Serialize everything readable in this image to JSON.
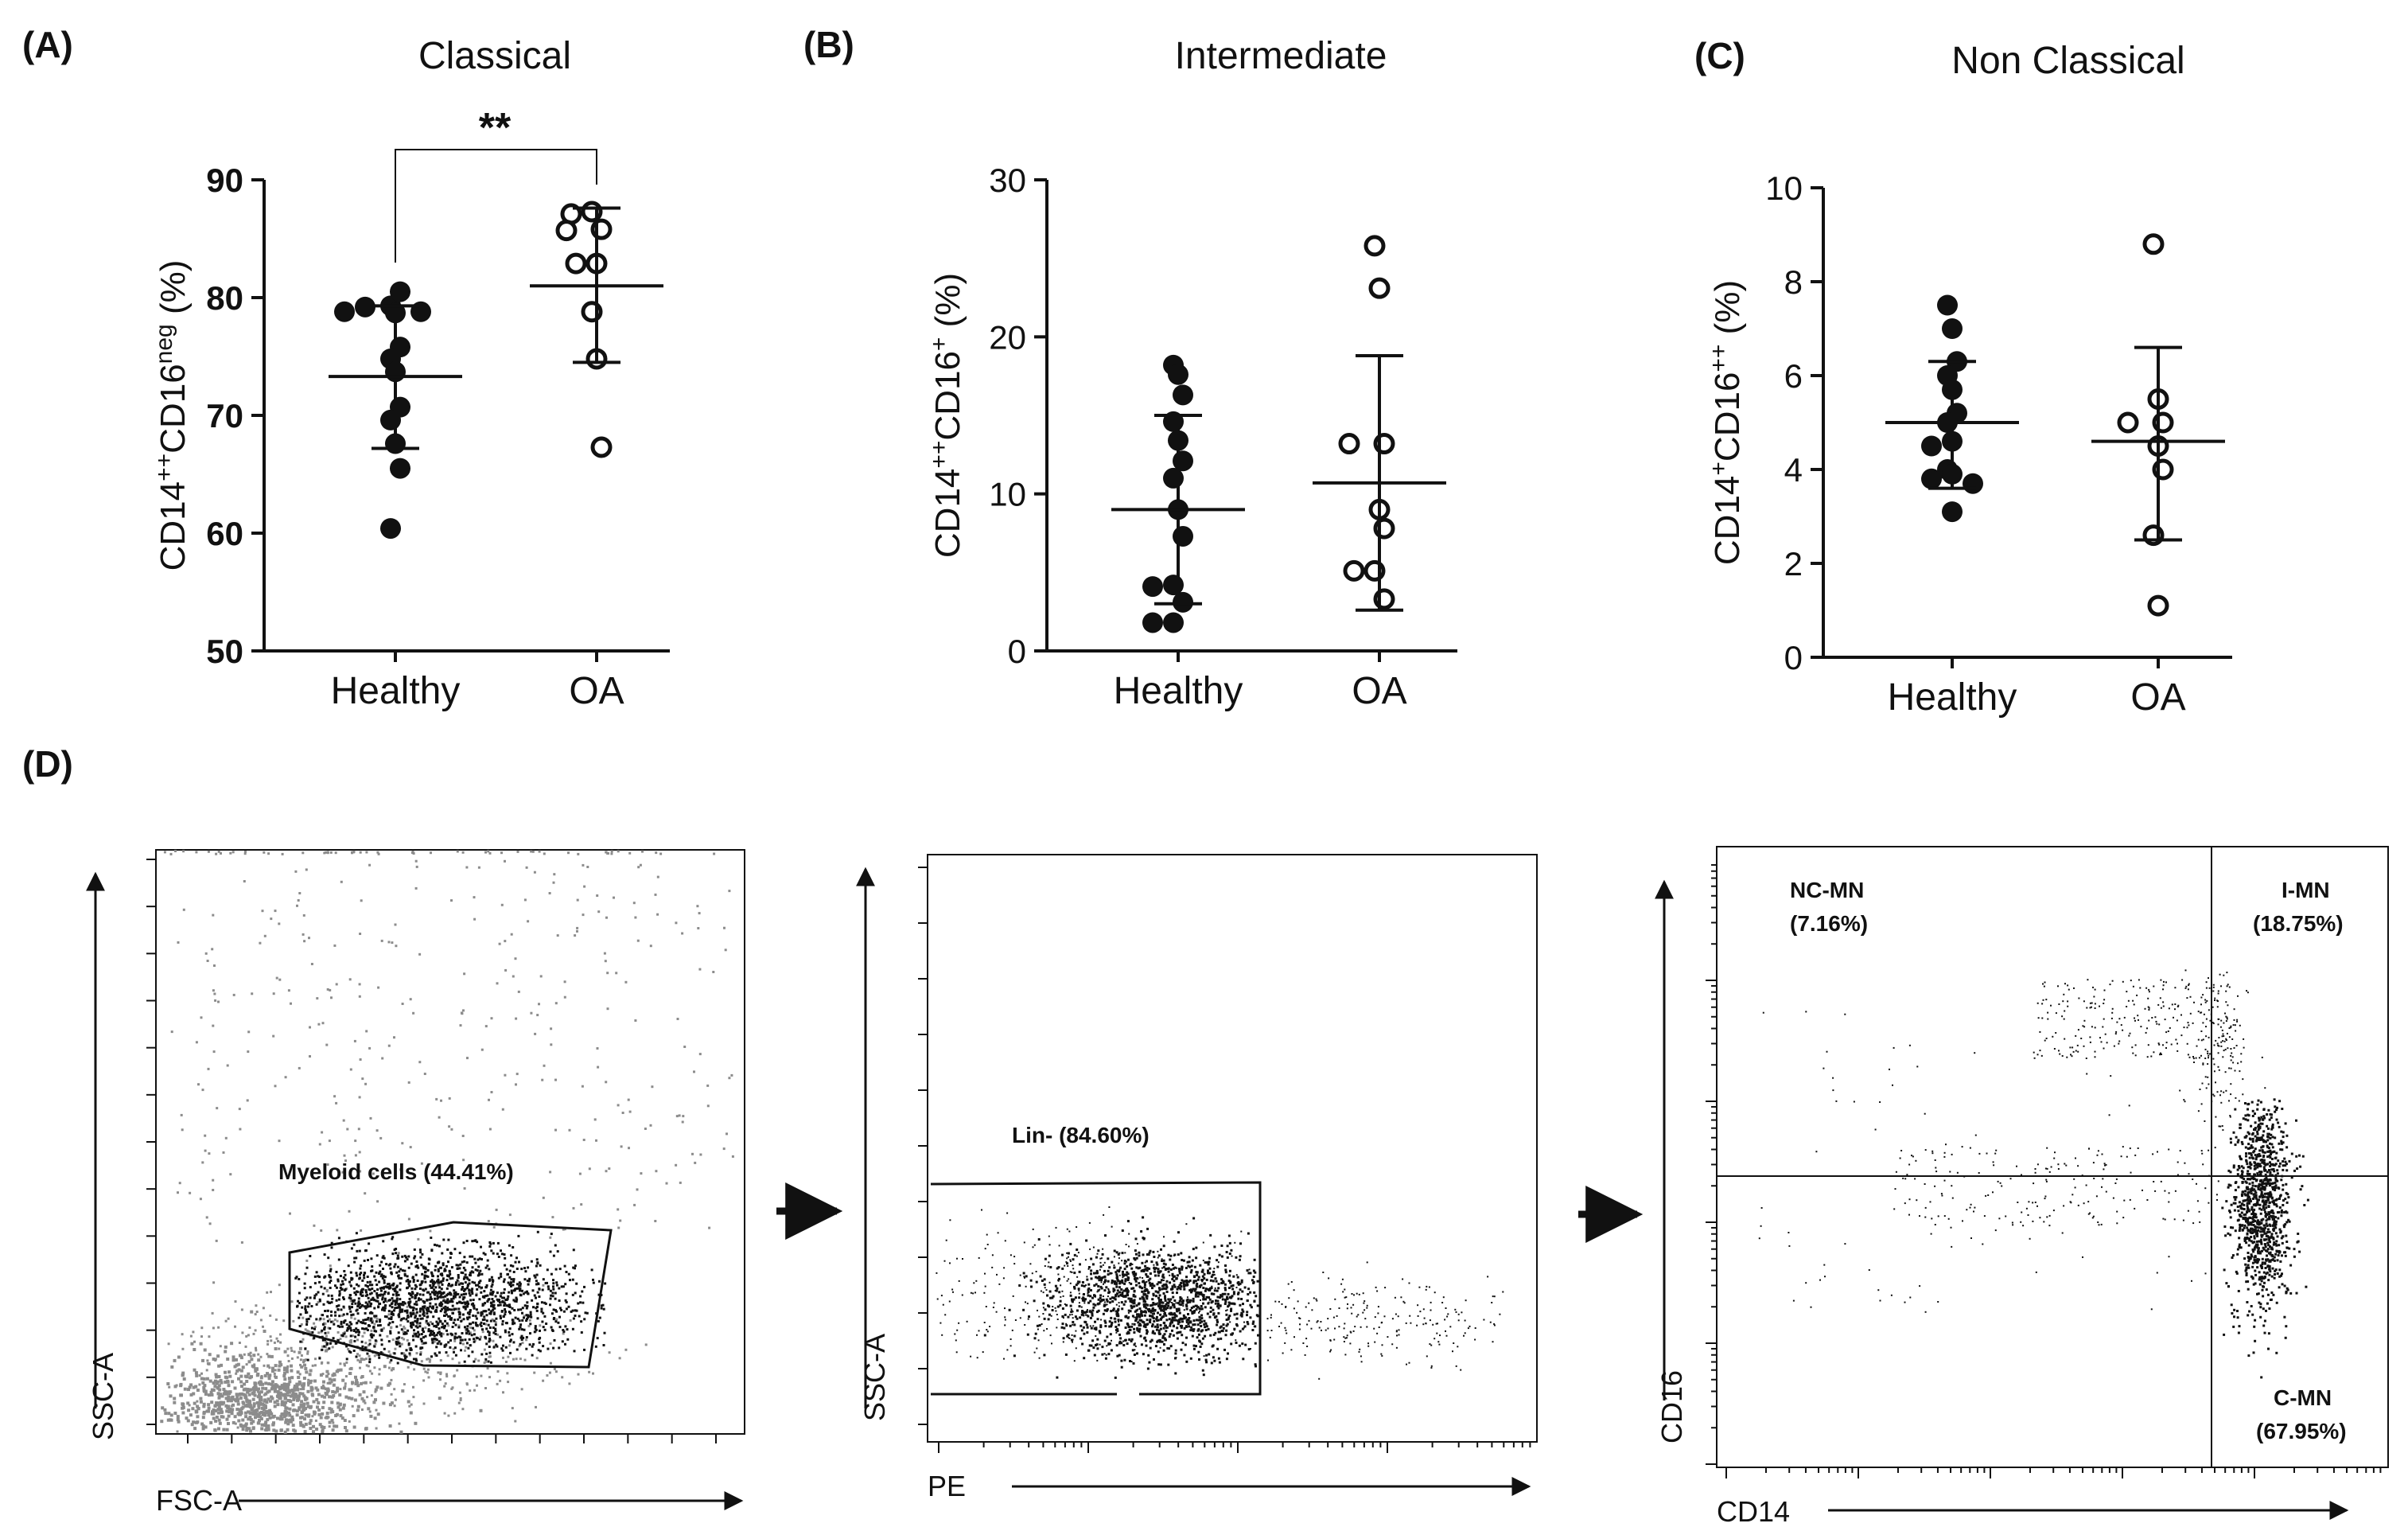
{
  "panels": {
    "A": "(A)",
    "B": "(B)",
    "C": "(C)",
    "D": "(D)"
  },
  "chart_data": [
    {
      "type": "scatter",
      "title": "Classical",
      "ylabel": "CD14++CD16neg (%)",
      "ylim": [
        50,
        90
      ],
      "yticks": [
        50,
        60,
        70,
        80,
        90
      ],
      "categories": [
        "Healthy",
        "OA"
      ],
      "series": [
        {
          "category": "Healthy",
          "marker": "filled",
          "values": [
            79.3,
            78.7,
            80.5,
            79.2,
            78.8,
            75.8,
            74.8,
            73.7,
            70.7,
            69.6,
            67.6,
            65.5,
            60.4,
            78.8
          ],
          "mean": 73.3,
          "sd_low": 67.2,
          "sd_high": 79.3
        },
        {
          "category": "OA",
          "marker": "open",
          "values": [
            87.3,
            87.1,
            85.8,
            85.7,
            82.9,
            82.9,
            78.8,
            74.8,
            67.3
          ],
          "mean": 81.0,
          "sd_low": 74.5,
          "sd_high": 87.6
        }
      ],
      "significance": "**"
    },
    {
      "type": "scatter",
      "title": "Intermediate",
      "ylabel": "CD14++CD16+ (%)",
      "ylim": [
        0,
        30
      ],
      "yticks": [
        0,
        10,
        20,
        30
      ],
      "categories": [
        "Healthy",
        "OA"
      ],
      "series": [
        {
          "category": "Healthy",
          "marker": "filled",
          "values": [
            18.2,
            17.6,
            16.3,
            14.6,
            13.4,
            12.1,
            11.0,
            9.0,
            7.3,
            4.2,
            4.1,
            3.1,
            1.8,
            1.8
          ],
          "mean": 9.0,
          "sd_low": 3.0,
          "sd_high": 15.0
        },
        {
          "category": "OA",
          "marker": "open",
          "values": [
            25.8,
            23.1,
            13.2,
            13.2,
            9.0,
            7.8,
            5.1,
            5.1,
            3.3
          ],
          "mean": 10.7,
          "sd_low": 2.6,
          "sd_high": 18.8
        }
      ],
      "significance": ""
    },
    {
      "type": "scatter",
      "title": "Non Classical",
      "ylabel": "CD14+CD16++ (%)",
      "ylim": [
        0,
        10
      ],
      "yticks": [
        0,
        2,
        4,
        6,
        8,
        10
      ],
      "categories": [
        "Healthy",
        "OA"
      ],
      "series": [
        {
          "category": "Healthy",
          "marker": "filled",
          "values": [
            7.5,
            7.0,
            6.3,
            6.0,
            5.7,
            5.2,
            5.0,
            4.6,
            4.5,
            4.0,
            3.9,
            3.8,
            3.7,
            3.1
          ],
          "mean": 5.0,
          "sd_low": 3.6,
          "sd_high": 6.3
        },
        {
          "category": "OA",
          "marker": "open",
          "values": [
            8.8,
            5.5,
            5.0,
            5.0,
            4.5,
            4.0,
            2.6,
            1.1
          ],
          "mean": 4.6,
          "sd_low": 2.5,
          "sd_high": 6.6
        }
      ],
      "significance": ""
    }
  ],
  "facs": [
    {
      "xlabel": "FSC-A",
      "ylabel": "SSC-A",
      "gate_label": "Myeloid cells (44.41%)"
    },
    {
      "xlabel": "PE",
      "ylabel": "SSC-A",
      "gate_label": "Lin- (84.60%)"
    },
    {
      "xlabel": "CD14",
      "ylabel": "CD16",
      "quadrants": {
        "nc_name": "NC-MN",
        "nc_pct": "(7.16%)",
        "i_name": "I-MN",
        "i_pct": "(18.75%)",
        "c_name": "C-MN",
        "c_pct": "(67.95%)"
      }
    }
  ],
  "colors": {
    "ink": "#111111",
    "grey_events": "#8c8c8c"
  }
}
